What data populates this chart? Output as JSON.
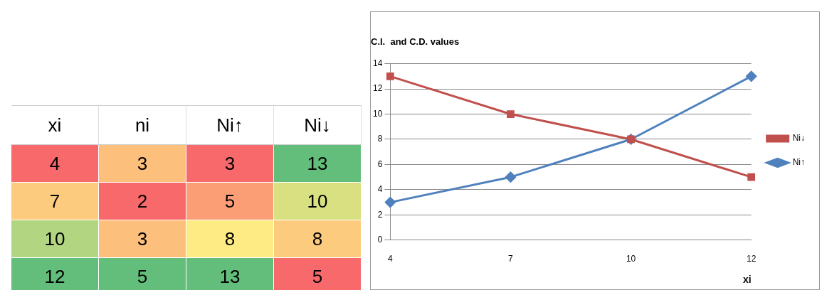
{
  "chart_data": [
    {
      "type": "heatmap",
      "categories": [
        "xi",
        "ni",
        "Ni↑",
        "Ni↓"
      ],
      "y_categories": [
        null,
        null,
        null,
        null
      ],
      "cells": [
        [
          4,
          3,
          3,
          13
        ],
        [
          7,
          2,
          5,
          10
        ],
        [
          10,
          3,
          8,
          8
        ],
        [
          12,
          5,
          13,
          5
        ]
      ],
      "data_labels": true
    },
    {
      "type": "line",
      "title": "C.I.  and C.D. values",
      "xlabel": "xi",
      "categories": [
        "4",
        "7",
        "10",
        "12"
      ],
      "series": [
        {
          "name": "Ni↑",
          "color": "#4f81bd",
          "values": [
            3,
            5,
            8,
            13
          ],
          "marker": "diamond"
        },
        {
          "name": "Ni↓",
          "color": "#c0504d",
          "values": [
            13,
            10,
            8,
            5
          ],
          "marker": "square"
        }
      ],
      "ylim": [
        0,
        14
      ],
      "yticks": [
        0,
        2,
        4,
        6,
        8,
        10,
        12,
        14
      ],
      "grid": "y",
      "legend": "right",
      "line_style": "solid"
    }
  ]
}
